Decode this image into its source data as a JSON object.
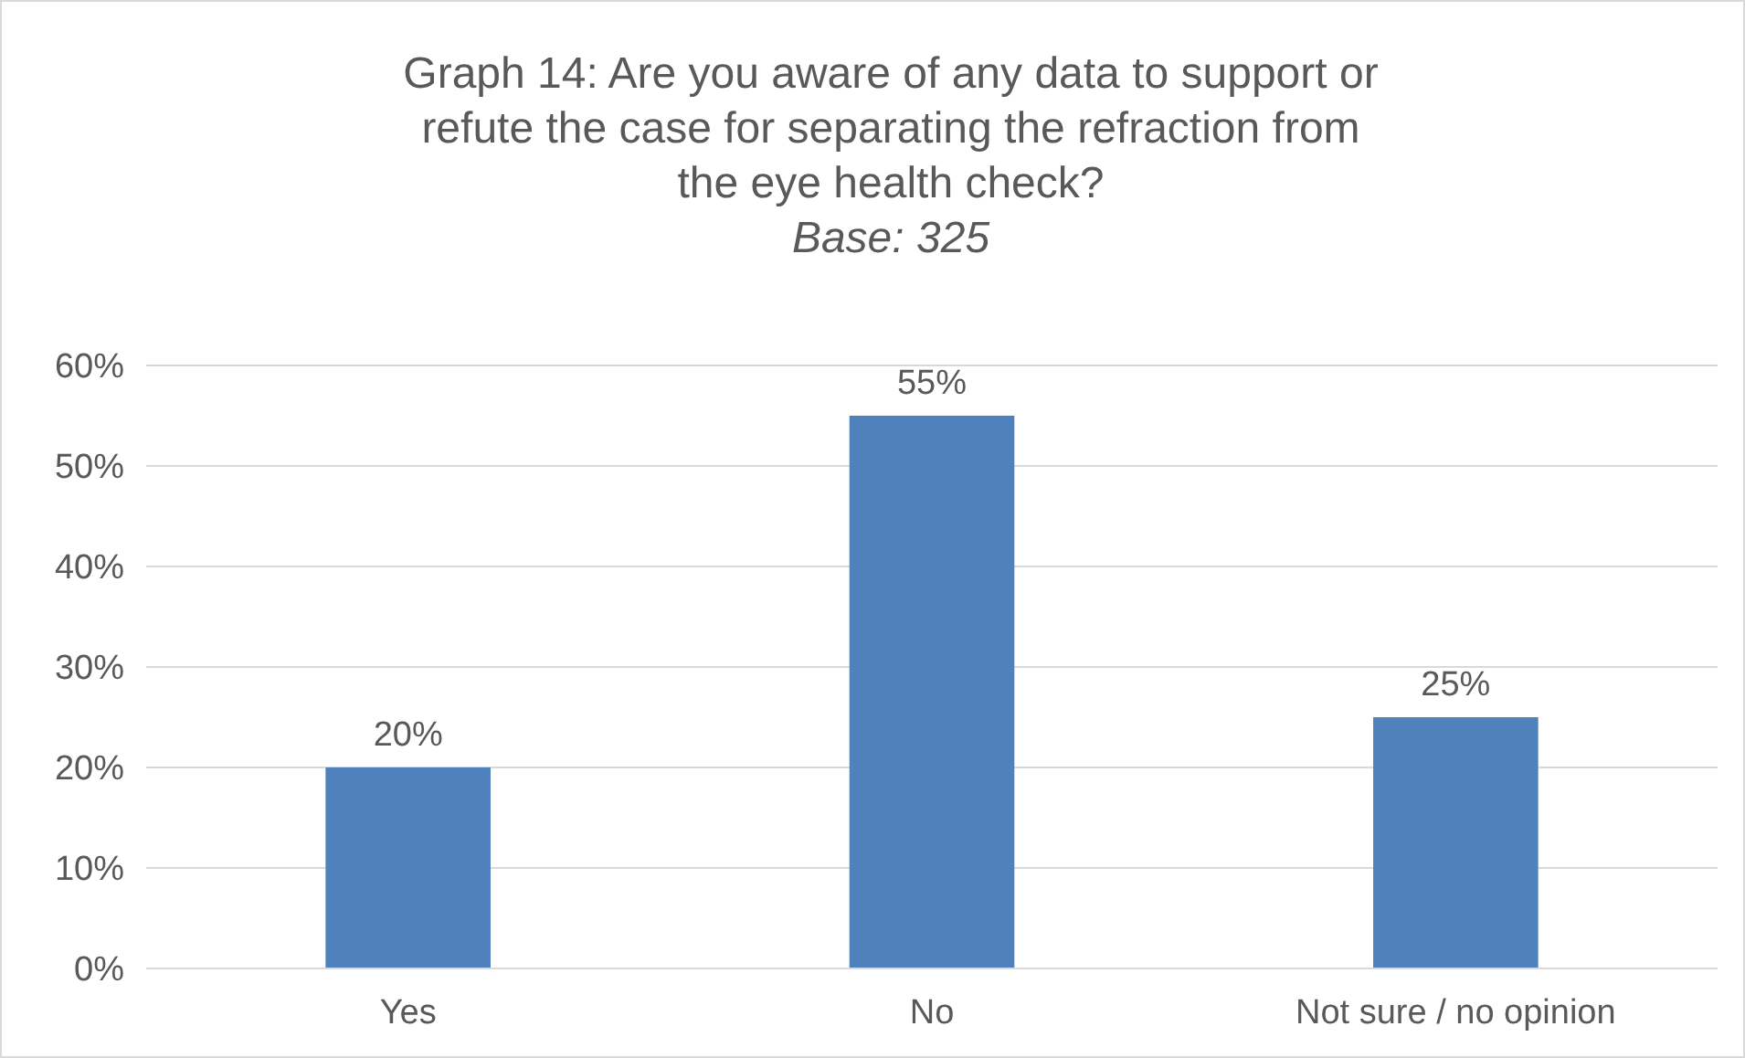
{
  "chart_data": {
    "type": "bar",
    "title": "Graph 14: Are you aware of any data to support or refute the case for separating the refraction from the eye health check?",
    "subtitle": "Base: 325",
    "categories": [
      "Yes",
      "No",
      "Not sure / no opinion"
    ],
    "values": [
      20,
      55,
      25
    ],
    "value_labels": [
      "20%",
      "55%",
      "25%"
    ],
    "color": "#4f81bd",
    "ylim": [
      0,
      60
    ],
    "yticks": [
      {
        "value": 0,
        "label": "0%"
      },
      {
        "value": 10,
        "label": "10%"
      },
      {
        "value": 20,
        "label": "20%"
      },
      {
        "value": 30,
        "label": "30%"
      },
      {
        "value": 40,
        "label": "40%"
      },
      {
        "value": 50,
        "label": "50%"
      },
      {
        "value": 60,
        "label": "60%"
      }
    ],
    "grid": "y"
  }
}
